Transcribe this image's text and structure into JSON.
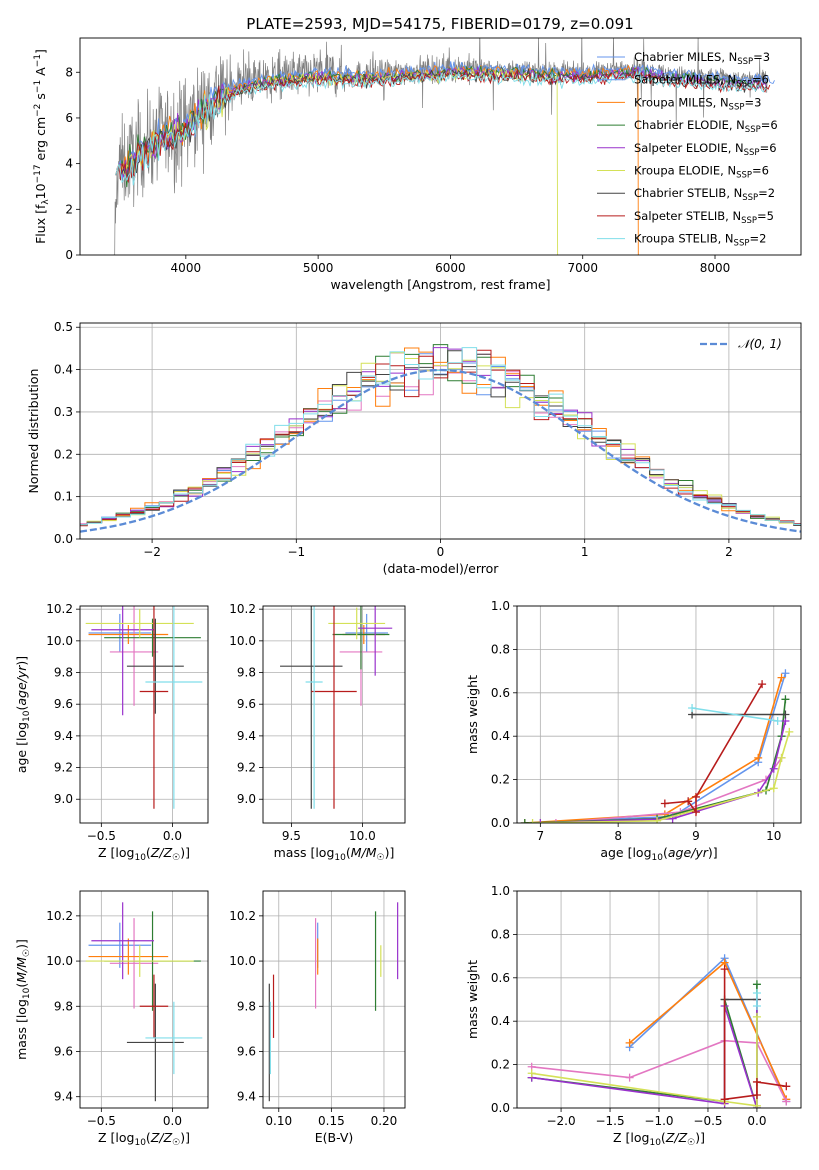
{
  "page_title": "PLATE=2593, MJD=54175, FIBERID=0179, z=0.091",
  "legend_series": [
    {
      "name": "Chabrier MILES, N_SSP=3",
      "short": "Chabrier MILES, N",
      "sub": "SSP",
      "suffix": "=3",
      "color": "#6495ed"
    },
    {
      "name": "Salpeter MILES, N_SSP=6",
      "short": "Salpeter MILES, N",
      "sub": "SSP",
      "suffix": "=6",
      "color": "#6495ed"
    },
    {
      "name": "Kroupa MILES, N_SSP=3",
      "short": "Kroupa MILES, N",
      "sub": "SSP",
      "suffix": "=3",
      "color": "#ff7f0e"
    },
    {
      "name": "Chabrier ELODIE, N_SSP=6",
      "short": "Chabrier ELODIE, N",
      "sub": "SSP",
      "suffix": "=6",
      "color": "#2e7d32"
    },
    {
      "name": "Salpeter ELODIE, N_SSP=6",
      "short": "Salpeter ELODIE, N",
      "sub": "SSP",
      "suffix": "=6",
      "color": "#9932cc"
    },
    {
      "name": "Kroupa ELODIE, N_SSP=6",
      "short": "Kroupa ELODIE, N",
      "sub": "SSP",
      "suffix": "=6",
      "color": "#d4e157"
    },
    {
      "name": "Chabrier STELIB, N_SSP=2",
      "short": "Chabrier STELIB, N",
      "sub": "SSP",
      "suffix": "=2",
      "color": "#444444"
    },
    {
      "name": "Salpeter STELIB, N_SSP=5",
      "short": "Salpeter STELIB, N",
      "sub": "SSP",
      "suffix": "=5",
      "color": "#b71c1c"
    },
    {
      "name": "Kroupa STELIB, N_SSP=2",
      "short": "Kroupa STELIB, N",
      "sub": "SSP",
      "suffix": "=2",
      "color": "#80deea"
    }
  ],
  "chart_data": [
    {
      "type": "line",
      "id": "spectrum",
      "xlabel": "wavelength [Angstrom, rest frame]",
      "ylabel": "Flux [f_λ 10^-17 erg cm^-2 s^-1 A^-1]",
      "xlim": [
        3200,
        8650
      ],
      "ylim": [
        0,
        9.5
      ],
      "xticks": [
        4000,
        5000,
        6000,
        7000,
        8000
      ],
      "yticks": [
        0,
        2,
        4,
        6,
        8
      ],
      "continuum_x": [
        3450,
        3600,
        3800,
        3950,
        4050,
        4200,
        4400,
        4700,
        5000,
        5300,
        5600,
        6000,
        6500,
        7000,
        7400,
        7700,
        8000,
        8200
      ],
      "continuum_y": [
        3.6,
        4.3,
        5.3,
        5.5,
        6.0,
        6.9,
        7.5,
        7.8,
        8.0,
        7.9,
        8.0,
        8.2,
        8.1,
        8.0,
        8.2,
        7.9,
        7.8,
        7.7
      ],
      "data_series": "observed spectrum (grey)"
    },
    {
      "type": "bar",
      "id": "residuals",
      "xlabel": "(data-model)/error",
      "ylabel": "Normed distribution",
      "xlim": [
        -2.5,
        2.5
      ],
      "ylim": [
        0,
        0.51
      ],
      "xticks": [
        -2,
        -1,
        0,
        1,
        2
      ],
      "yticks": [
        0.0,
        0.1,
        0.2,
        0.3,
        0.4,
        0.5
      ],
      "bin_width": 0.1,
      "reference_curve": "N(0,1)",
      "reference_label": "𝒩(0, 1)",
      "grid": true
    },
    {
      "type": "scatter",
      "id": "age-vs-Z",
      "xlabel": "Z [log10(Z/Z☉)]",
      "ylabel": "age [log10(age/yr)]",
      "xlim": [
        -0.65,
        0.25
      ],
      "ylim": [
        8.85,
        10.22
      ],
      "xticks": [
        -0.5,
        0.0
      ],
      "yticks": [
        9.0,
        9.2,
        9.4,
        9.6,
        9.8,
        10.0,
        10.2
      ],
      "points": [
        {
          "color": "#6495ed",
          "x": -0.37,
          "xerr": 0.22,
          "y": 10.05,
          "yerr": 0.12
        },
        {
          "color": "#e377c2",
          "x": -0.27,
          "xerr": 0.17,
          "y": 9.93,
          "yerr": 0.34
        },
        {
          "color": "#ff7f0e",
          "x": -0.31,
          "xerr": 0.28,
          "y": 10.04,
          "yerr": 0.06
        },
        {
          "color": "#2e7d32",
          "x": -0.14,
          "xerr": 0.34,
          "y": 10.02,
          "yerr": 0.12
        },
        {
          "color": "#9932cc",
          "x": -0.35,
          "xerr": 0.22,
          "y": 10.07,
          "yerr": 0.54
        },
        {
          "color": "#d4e157",
          "x": -0.23,
          "xerr": 0.38,
          "y": 10.11,
          "yerr": 0.09
        },
        {
          "color": "#444444",
          "x": -0.12,
          "xerr": 0.2,
          "y": 9.84,
          "yerr": 0.3
        },
        {
          "color": "#b71c1c",
          "x": -0.13,
          "xerr": 0.1,
          "y": 9.68,
          "yerr": 0.74
        },
        {
          "color": "#80deea",
          "x": 0.01,
          "xerr": 0.2,
          "y": 9.74,
          "yerr": 0.8
        }
      ]
    },
    {
      "type": "scatter",
      "id": "age-vs-mass",
      "xlabel": "mass [log10(M/M☉)]",
      "ylabel": "",
      "xlim": [
        9.3,
        10.3
      ],
      "ylim": [
        8.85,
        10.22
      ],
      "xticks": [
        9.5,
        10.0
      ],
      "yticks": [
        9.0,
        9.2,
        9.4,
        9.6,
        9.8,
        10.0,
        10.2
      ],
      "points": [
        {
          "color": "#6495ed",
          "x": 10.03,
          "xerr": 0.15,
          "y": 10.05,
          "yerr": 0.12
        },
        {
          "color": "#e377c2",
          "x": 9.99,
          "xerr": 0.15,
          "y": 9.93,
          "yerr": 0.34
        },
        {
          "color": "#ff7f0e",
          "x": 10.01,
          "xerr": 0.15,
          "y": 10.04,
          "yerr": 0.06
        },
        {
          "color": "#2e7d32",
          "x": 9.99,
          "xerr": 0.2,
          "y": 10.04,
          "yerr": 0.22
        },
        {
          "color": "#9932cc",
          "x": 10.09,
          "xerr": 0.12,
          "y": 10.08,
          "yerr": 0.3
        },
        {
          "color": "#d4e157",
          "x": 9.96,
          "xerr": 0.2,
          "y": 10.11,
          "yerr": 0.1
        },
        {
          "color": "#444444",
          "x": 9.64,
          "xerr": 0.22,
          "y": 9.84,
          "yerr": 0.9
        },
        {
          "color": "#b71c1c",
          "x": 9.8,
          "xerr": 0.16,
          "y": 9.68,
          "yerr": 0.74
        },
        {
          "color": "#80deea",
          "x": 9.66,
          "xerr": 0.06,
          "y": 9.74,
          "yerr": 0.8
        }
      ]
    },
    {
      "type": "line",
      "id": "massweight-vs-age",
      "xlabel": "age [log10(age/yr)]",
      "ylabel": "mass weight",
      "xlim": [
        6.7,
        10.35
      ],
      "ylim": [
        0,
        1.0
      ],
      "xticks": [
        7,
        8,
        9,
        10
      ],
      "yticks": [
        0.0,
        0.2,
        0.4,
        0.6,
        0.8,
        1.0
      ],
      "grid": true,
      "series": [
        {
          "color": "#6495ed",
          "x": [
            6.8,
            8.7,
            9.8,
            10.15
          ],
          "y": [
            0.0,
            0.03,
            0.28,
            0.69
          ]
        },
        {
          "color": "#ff7f0e",
          "x": [
            6.8,
            8.6,
            9.8,
            10.1
          ],
          "y": [
            0.0,
            0.04,
            0.3,
            0.67
          ]
        },
        {
          "color": "#e377c2",
          "x": [
            7.2,
            8.8,
            9.9,
            10.1
          ],
          "y": [
            0.0,
            0.05,
            0.2,
            0.3
          ]
        },
        {
          "color": "#2e7d32",
          "x": [
            6.8,
            8.5,
            9.9,
            10.1,
            10.15
          ],
          "y": [
            0.0,
            0.02,
            0.15,
            0.4,
            0.57
          ]
        },
        {
          "color": "#9932cc",
          "x": [
            7.0,
            8.7,
            9.8,
            10.0,
            10.15
          ],
          "y": [
            0.0,
            0.02,
            0.14,
            0.25,
            0.47
          ]
        },
        {
          "color": "#d4e157",
          "x": [
            6.9,
            8.5,
            10.0,
            10.1,
            10.2
          ],
          "y": [
            0.0,
            0.01,
            0.16,
            0.3,
            0.42
          ]
        },
        {
          "color": "#444444",
          "x": [
            8.95,
            10.15
          ],
          "y": [
            0.5,
            0.5
          ]
        },
        {
          "color": "#b71c1c",
          "x": [
            8.6,
            8.9,
            9.0,
            9.0,
            9.85
          ],
          "y": [
            0.09,
            0.1,
            0.05,
            0.12,
            0.64
          ]
        },
        {
          "color": "#80deea",
          "x": [
            8.95,
            10.05
          ],
          "y": [
            0.53,
            0.47
          ]
        }
      ]
    },
    {
      "type": "scatter",
      "id": "mass-vs-Z",
      "xlabel": "Z [log10(Z/Z☉)]",
      "ylabel": "mass [log10(M/M☉)]",
      "xlim": [
        -0.65,
        0.25
      ],
      "ylim": [
        9.35,
        10.31
      ],
      "xticks": [
        -0.5,
        0.0
      ],
      "yticks": [
        9.4,
        9.6,
        9.8,
        10.0,
        10.2
      ],
      "points": [
        {
          "color": "#6495ed",
          "x": -0.37,
          "xerr": 0.22,
          "y": 10.07,
          "yerr": 0.1
        },
        {
          "color": "#e377c2",
          "x": -0.27,
          "xerr": 0.17,
          "y": 9.99,
          "yerr": 0.2
        },
        {
          "color": "#ff7f0e",
          "x": -0.31,
          "xerr": 0.28,
          "y": 10.02,
          "yerr": 0.08
        },
        {
          "color": "#2e7d32",
          "x": -0.14,
          "xerr": 0.34,
          "y": 10.0,
          "yerr": 0.22
        },
        {
          "color": "#9932cc",
          "x": -0.35,
          "xerr": 0.22,
          "y": 10.09,
          "yerr": 0.17
        },
        {
          "color": "#d4e157",
          "x": -0.23,
          "xerr": 0.38,
          "y": 10.0,
          "yerr": 0.07
        },
        {
          "color": "#444444",
          "x": -0.12,
          "xerr": 0.2,
          "y": 9.64,
          "yerr": 0.26
        },
        {
          "color": "#b71c1c",
          "x": -0.13,
          "xerr": 0.1,
          "y": 9.8,
          "yerr": 0.14
        },
        {
          "color": "#80deea",
          "x": 0.01,
          "xerr": 0.2,
          "y": 9.66,
          "yerr": 0.16
        }
      ]
    },
    {
      "type": "scatter",
      "id": "mass-vs-ebv",
      "xlabel": "E(B-V)",
      "ylabel": "",
      "xlim": [
        0.085,
        0.22
      ],
      "ylim": [
        9.35,
        10.31
      ],
      "xticks": [
        0.1,
        0.15,
        0.2
      ],
      "yticks": [
        9.4,
        9.6,
        9.8,
        10.0,
        10.2
      ],
      "points": [
        {
          "color": "#6495ed",
          "x": 0.137,
          "y": 10.07,
          "yerr": 0.1
        },
        {
          "color": "#e377c2",
          "x": 0.135,
          "y": 9.99,
          "yerr": 0.2
        },
        {
          "color": "#ff7f0e",
          "x": 0.137,
          "y": 10.02,
          "yerr": 0.08
        },
        {
          "color": "#2e7d32",
          "x": 0.192,
          "y": 10.0,
          "yerr": 0.22
        },
        {
          "color": "#9932cc",
          "x": 0.213,
          "y": 10.09,
          "yerr": 0.17
        },
        {
          "color": "#d4e157",
          "x": 0.197,
          "y": 10.0,
          "yerr": 0.07
        },
        {
          "color": "#444444",
          "x": 0.091,
          "y": 9.64,
          "yerr": 0.26
        },
        {
          "color": "#b71c1c",
          "x": 0.095,
          "y": 9.8,
          "yerr": 0.14
        },
        {
          "color": "#80deea",
          "x": 0.092,
          "y": 9.66,
          "yerr": 0.16
        }
      ]
    },
    {
      "type": "line",
      "id": "massweight-vs-Z",
      "xlabel": "Z [log10(Z/Z☉)]",
      "ylabel": "mass weight",
      "xlim": [
        -2.45,
        0.45
      ],
      "ylim": [
        0,
        1.0
      ],
      "xticks": [
        -2.0,
        -1.5,
        -1.0,
        -0.5,
        0.0
      ],
      "yticks": [
        0.0,
        0.2,
        0.4,
        0.6,
        0.8,
        1.0
      ],
      "grid": true,
      "series": [
        {
          "color": "#6495ed",
          "x": [
            -1.3,
            -0.33,
            0.3
          ],
          "y": [
            0.28,
            0.69,
            0.03
          ]
        },
        {
          "color": "#ff7f0e",
          "x": [
            -1.3,
            -0.33,
            0.3
          ],
          "y": [
            0.3,
            0.67,
            0.04
          ]
        },
        {
          "color": "#e377c2",
          "x": [
            -2.3,
            -1.3,
            -0.33,
            0.0,
            0.3
          ],
          "y": [
            0.19,
            0.14,
            0.31,
            0.3,
            0.03
          ]
        },
        {
          "color": "#2e7d32",
          "x": [
            -2.3,
            -0.33,
            -0.33,
            0.0,
            0.0
          ],
          "y": [
            0.14,
            0.03,
            0.5,
            0.0,
            0.57
          ]
        },
        {
          "color": "#9932cc",
          "x": [
            -2.3,
            -0.33,
            -0.33,
            0.0,
            0.0
          ],
          "y": [
            0.14,
            0.02,
            0.47,
            0.0,
            0.5
          ]
        },
        {
          "color": "#d4e157",
          "x": [
            -2.3,
            -0.33,
            0.0,
            0.0
          ],
          "y": [
            0.16,
            0.03,
            0.01,
            0.42
          ]
        },
        {
          "color": "#444444",
          "x": [
            -0.33,
            0.0
          ],
          "y": [
            0.5,
            0.5
          ]
        },
        {
          "color": "#b71c1c",
          "x": [
            -0.33,
            -0.33,
            0.0,
            0.0,
            0.3
          ],
          "y": [
            0.64,
            0.04,
            0.06,
            0.12,
            0.1
          ]
        },
        {
          "color": "#80deea",
          "x": [
            0.0,
            0.0
          ],
          "y": [
            0.53,
            0.47
          ]
        }
      ]
    }
  ]
}
